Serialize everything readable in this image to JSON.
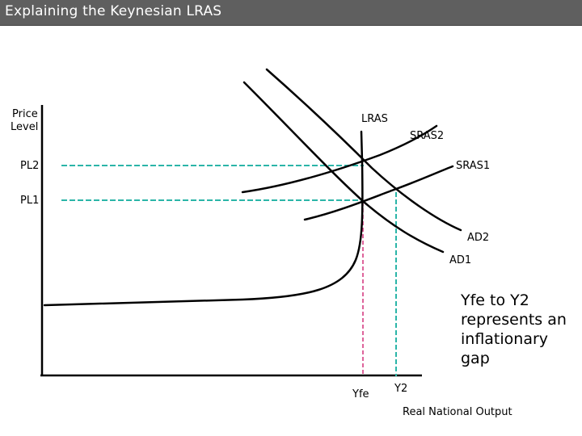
{
  "title": "Explaining the Keynesian LRAS",
  "axes": {
    "y_label_line1": "Price",
    "y_label_line2": "Level",
    "x_label": "Real National Output"
  },
  "curve_labels": {
    "lras": "LRAS",
    "sras2": "SRAS2",
    "sras1": "SRAS1",
    "ad2": "AD2",
    "ad1": "AD1"
  },
  "price_levels": {
    "pl2": "PL2",
    "pl1": "PL1"
  },
  "output_levels": {
    "yfe": "Yfe",
    "y2": "Y2"
  },
  "annotation": "Yfe to Y2 represents an inflationary gap",
  "colors": {
    "title_bar": "#5f5f5f",
    "pl_guides": "#2bb5a8",
    "yfe_guide": "#d4307a",
    "y2_guide": "#2bb5a8",
    "curves": "#000000"
  }
}
